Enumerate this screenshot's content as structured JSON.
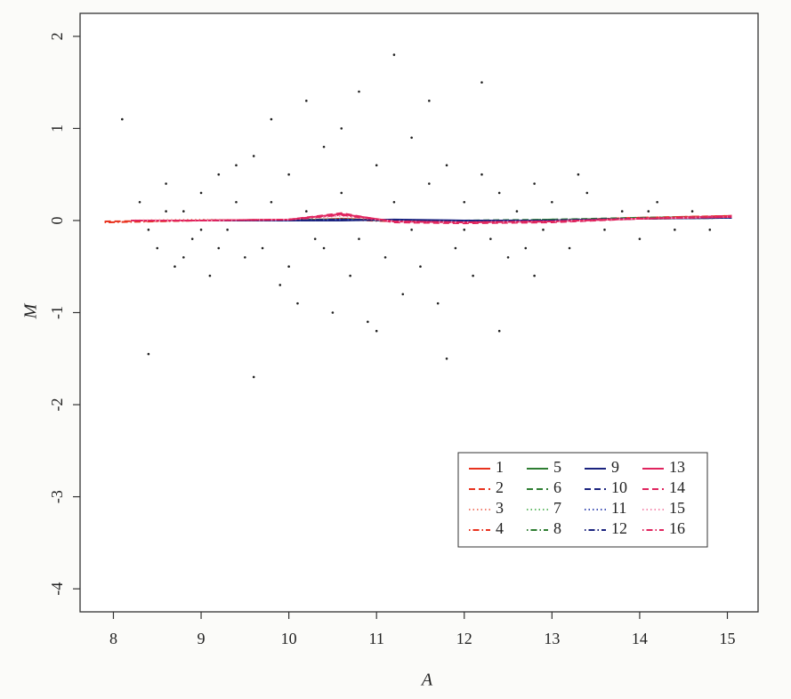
{
  "chart_data": {
    "type": "scatter",
    "xlabel": "A",
    "ylabel": "M",
    "xlim": [
      7.62,
      15.35
    ],
    "ylim": [
      -4.25,
      2.25
    ],
    "xticks": [
      8,
      9,
      10,
      11,
      12,
      13,
      14,
      15
    ],
    "yticks": [
      -4,
      -3,
      -2,
      -1,
      0,
      1,
      2
    ],
    "legend": "lower right",
    "points": {
      "color": "#222222",
      "x": [
        8.3,
        8.5,
        8.6,
        8.7,
        8.8,
        8.9,
        9.0,
        9.1,
        9.2,
        9.3,
        9.4,
        9.5,
        9.6,
        9.7,
        9.8,
        9.9,
        10.0,
        10.1,
        10.2,
        10.3,
        10.4,
        10.5,
        10.6,
        10.7,
        10.8,
        10.9,
        11.0,
        11.1,
        11.2,
        11.3,
        11.4,
        11.5,
        11.6,
        11.7,
        11.8,
        11.9,
        12.0,
        12.1,
        12.2,
        12.3,
        12.4,
        12.5,
        12.6,
        12.7,
        12.8,
        12.9,
        13.0,
        13.2,
        13.4,
        13.6,
        13.8,
        14.0,
        14.2,
        14.4,
        14.6,
        14.8,
        8.4,
        8.6,
        8.8,
        9.0,
        9.2,
        9.4,
        9.6,
        9.8,
        10.0,
        10.2,
        10.4,
        10.6,
        10.8,
        11.0,
        11.2,
        11.4,
        11.6,
        11.8,
        12.0,
        12.2,
        12.4,
        12.8,
        13.3,
        14.1,
        8.1,
        8.4
      ],
      "values": [
        0.2,
        -0.3,
        0.4,
        -0.5,
        0.1,
        -0.2,
        0.3,
        -0.6,
        0.5,
        -0.1,
        0.2,
        -0.4,
        0.7,
        -0.3,
        1.1,
        -0.7,
        0.5,
        -0.9,
        1.3,
        -0.2,
        0.8,
        -1.0,
        0.3,
        -0.6,
        1.4,
        -1.1,
        0.6,
        -0.4,
        1.8,
        -0.8,
        0.9,
        -0.5,
        0.4,
        -0.9,
        0.6,
        -0.3,
        0.2,
        -0.6,
        0.5,
        -0.2,
        0.3,
        -0.4,
        0.1,
        -0.3,
        0.4,
        -0.1,
        0.2,
        -0.3,
        0.3,
        -0.1,
        0.1,
        -0.2,
        0.2,
        -0.1,
        0.1,
        -0.1,
        -0.1,
        0.1,
        -0.4,
        -0.1,
        -0.3,
        0.6,
        -1.7,
        0.2,
        -0.5,
        0.1,
        -0.3,
        1.0,
        -0.2,
        -1.2,
        0.2,
        -0.1,
        1.3,
        -1.5,
        -0.1,
        1.5,
        -1.2,
        -0.6,
        0.5,
        0.1,
        1.1,
        -1.45
      ]
    },
    "series": [
      {
        "name": "1",
        "color": "#e8321e",
        "dash": "solid",
        "x": [
          8.2,
          9,
          10,
          10.6,
          11.2,
          12,
          13,
          14,
          15.05
        ],
        "values": [
          0,
          0,
          0,
          0.02,
          0,
          -0.01,
          0,
          0.02,
          0.04
        ]
      },
      {
        "name": "2",
        "color": "#e8321e",
        "dash": "dashed",
        "x": [
          7.9,
          9,
          10,
          10.6,
          11.2,
          12,
          13,
          14,
          15.05
        ],
        "values": [
          -0.01,
          0,
          0,
          0.01,
          0,
          -0.01,
          0,
          0.03,
          0.05
        ]
      },
      {
        "name": "3",
        "color": "#f08070",
        "dash": "dotted",
        "x": [
          8.2,
          9,
          10,
          10.6,
          11.2,
          12,
          13,
          14,
          15.05
        ],
        "values": [
          0,
          0.01,
          0,
          0.02,
          0,
          -0.02,
          0,
          0.02,
          0.04
        ]
      },
      {
        "name": "4",
        "color": "#e8321e",
        "dash": "dotdash",
        "x": [
          7.9,
          9,
          10,
          10.6,
          11.2,
          12,
          13,
          14,
          15.05
        ],
        "values": [
          -0.02,
          0,
          0,
          0.01,
          -0.01,
          -0.01,
          0,
          0.03,
          0.05
        ]
      },
      {
        "name": "5",
        "color": "#2e7d32",
        "dash": "solid",
        "x": [
          8.2,
          9,
          10,
          10.6,
          11.2,
          12,
          13,
          14,
          15.05
        ],
        "values": [
          0,
          0,
          0,
          0.01,
          0,
          -0.01,
          0,
          0.02,
          0.03
        ]
      },
      {
        "name": "6",
        "color": "#2e7d32",
        "dash": "dashed",
        "x": [
          8.2,
          9,
          10,
          10.6,
          11.2,
          12,
          13,
          14,
          15.05
        ],
        "values": [
          0,
          0,
          0.01,
          0.01,
          0,
          0,
          0.01,
          0.03,
          0.04
        ]
      },
      {
        "name": "7",
        "color": "#66bb6a",
        "dash": "dotted",
        "x": [
          8.2,
          9,
          10,
          10.6,
          11.2,
          12,
          13,
          14,
          15.05
        ],
        "values": [
          0,
          0,
          0,
          0.02,
          0,
          -0.01,
          0,
          0.02,
          0.04
        ]
      },
      {
        "name": "8",
        "color": "#2e7d32",
        "dash": "dotdash",
        "x": [
          8.2,
          9,
          10,
          10.6,
          11.2,
          12,
          13,
          14,
          15.05
        ],
        "values": [
          0,
          0,
          0,
          0.01,
          0,
          -0.01,
          0.01,
          0.02,
          0.03
        ]
      },
      {
        "name": "9",
        "color": "#1a237e",
        "dash": "solid",
        "x": [
          8.2,
          9,
          10,
          10.6,
          11.2,
          12,
          13,
          14,
          15.05
        ],
        "values": [
          0,
          0,
          0,
          0,
          0.01,
          0,
          0,
          0.02,
          0.03
        ]
      },
      {
        "name": "10",
        "color": "#1a237e",
        "dash": "dashed",
        "x": [
          8.2,
          9,
          10,
          10.6,
          11.2,
          12,
          13,
          14,
          15.05
        ],
        "values": [
          0,
          0,
          0,
          0.01,
          0,
          -0.01,
          0,
          0.02,
          0.04
        ]
      },
      {
        "name": "11",
        "color": "#3f51b5",
        "dash": "dotted",
        "x": [
          8.2,
          9,
          10,
          10.6,
          11.2,
          12,
          13,
          14,
          15.05
        ],
        "values": [
          0,
          0,
          0,
          0.01,
          0,
          -0.01,
          0,
          0.02,
          0.03
        ]
      },
      {
        "name": "12",
        "color": "#1a237e",
        "dash": "dotdash",
        "x": [
          8.2,
          9,
          10,
          10.6,
          11.2,
          12,
          13,
          14,
          15.05
        ],
        "values": [
          0,
          0,
          0,
          0.01,
          0,
          0,
          0,
          0.02,
          0.03
        ]
      },
      {
        "name": "13",
        "color": "#e0245e",
        "dash": "solid",
        "x": [
          8.2,
          9,
          10,
          10.6,
          11.2,
          12,
          13,
          14,
          15.05
        ],
        "values": [
          0,
          0,
          0.01,
          0.07,
          -0.01,
          -0.02,
          -0.01,
          0.02,
          0.04
        ]
      },
      {
        "name": "14",
        "color": "#e0245e",
        "dash": "dashed",
        "x": [
          8.2,
          9,
          10,
          10.6,
          11.2,
          12,
          13,
          14,
          15.05
        ],
        "values": [
          0,
          0,
          0.01,
          0.08,
          -0.02,
          -0.03,
          -0.02,
          0.02,
          0.05
        ]
      },
      {
        "name": "15",
        "color": "#f48fb1",
        "dash": "dotted",
        "x": [
          8.2,
          9,
          10,
          10.6,
          11.2,
          12,
          13,
          14,
          15.05
        ],
        "values": [
          0,
          0,
          0.01,
          0.05,
          -0.01,
          -0.02,
          -0.01,
          0.02,
          0.04
        ]
      },
      {
        "name": "16",
        "color": "#e0245e",
        "dash": "dotdash",
        "x": [
          8.2,
          9,
          10,
          10.6,
          11.2,
          12,
          13,
          14,
          15.05
        ],
        "values": [
          0,
          0,
          0.01,
          0.06,
          -0.01,
          -0.02,
          -0.01,
          0.02,
          0.04
        ]
      }
    ]
  }
}
